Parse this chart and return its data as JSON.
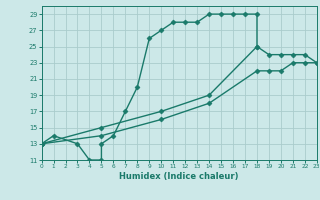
{
  "title": "",
  "xlabel": "Humidex (Indice chaleur)",
  "bg_color": "#cce8e8",
  "line_color": "#1a7a6a",
  "grid_color": "#aacccc",
  "xlim": [
    0,
    23
  ],
  "ylim": [
    11,
    30
  ],
  "xticks": [
    0,
    1,
    2,
    3,
    4,
    5,
    6,
    7,
    8,
    9,
    10,
    11,
    12,
    13,
    14,
    15,
    16,
    17,
    18,
    19,
    20,
    21,
    22,
    23
  ],
  "yticks": [
    11,
    13,
    15,
    17,
    19,
    21,
    23,
    25,
    27,
    29
  ],
  "series1_x": [
    0,
    1,
    3,
    4,
    5,
    5,
    6,
    7,
    8,
    9,
    10,
    11,
    12,
    13,
    14,
    15,
    16,
    17,
    18,
    18
  ],
  "series1_y": [
    13,
    14,
    13,
    11,
    11,
    13,
    14,
    17,
    20,
    26,
    27,
    28,
    28,
    28,
    29,
    29,
    29,
    29,
    29,
    25
  ],
  "series2_x": [
    0,
    5,
    10,
    14,
    18,
    19,
    20,
    21,
    22,
    23
  ],
  "series2_y": [
    13,
    15,
    17,
    19,
    25,
    24,
    24,
    24,
    24,
    23
  ],
  "series3_x": [
    0,
    5,
    10,
    14,
    18,
    19,
    20,
    21,
    22,
    23
  ],
  "series3_y": [
    13,
    14,
    16,
    18,
    22,
    22,
    22,
    23,
    23,
    23
  ],
  "marker": "D",
  "markersize": 2.5,
  "linewidth": 1.0
}
